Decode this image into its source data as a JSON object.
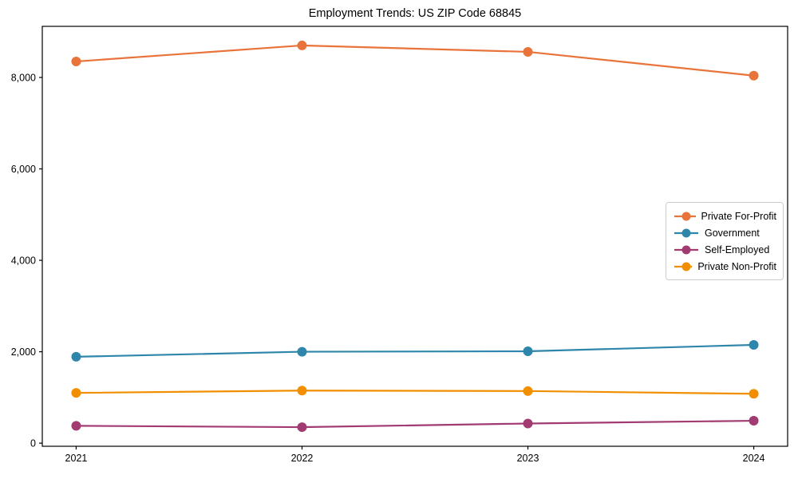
{
  "chart_data": {
    "type": "line",
    "title": "Employment Trends: US ZIP Code 68845",
    "xlabel": "",
    "ylabel": "",
    "x": [
      2021,
      2022,
      2023,
      2024
    ],
    "xtick_labels": [
      "2021",
      "2022",
      "2023",
      "2024"
    ],
    "yticks": [
      0,
      2000,
      4000,
      6000,
      8000
    ],
    "ytick_labels": [
      "0",
      "2,000",
      "4,000",
      "6,000",
      "8,000"
    ],
    "xlim": [
      2020.85,
      2024.15
    ],
    "ylim": [
      -68,
      9118
    ],
    "grid": false,
    "legend_position": "center-right",
    "marker": "circle",
    "series": [
      {
        "name": "Private For-Profit",
        "color": "#E8743B",
        "values": [
          8350,
          8700,
          8560,
          8040
        ]
      },
      {
        "name": "Government",
        "color": "#2E86AB",
        "values": [
          1890,
          2000,
          2010,
          2150
        ]
      },
      {
        "name": "Self-Employed",
        "color": "#A23B72",
        "values": [
          380,
          350,
          430,
          490
        ]
      },
      {
        "name": "Private Non-Profit",
        "color": "#F18F01",
        "values": [
          1100,
          1150,
          1140,
          1080
        ]
      }
    ],
    "colors": {
      "axis": "#000000",
      "text": "#000000",
      "legend_border": "#cccccc",
      "background": "#ffffff"
    }
  }
}
